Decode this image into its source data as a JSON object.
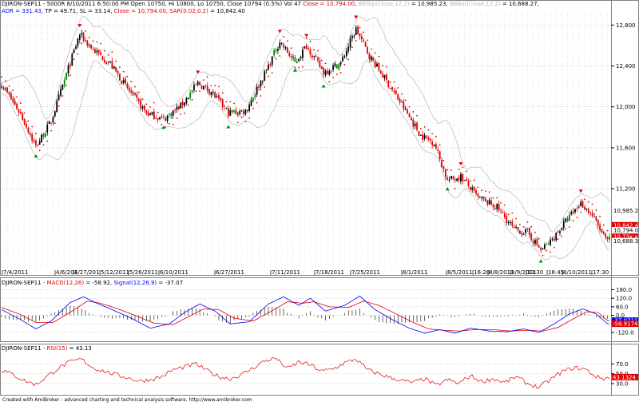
{
  "main": {
    "line1": {
      "symbol": "DJIRON-SEP11",
      "quote": " - 5000R 8/10/2011 6:50:00 PM Open 10750, Hi 10800, Lo 10750, Close 10794 (0.5%) Vol 47",
      "close": " Close = 10,794.00,",
      "bbtop": " BBTop(Close,12,2)",
      "bbtop_val": " = 10,985.23,",
      "bbbot": " BBBot(Close,12,2)",
      "bbbot_val": " = 10,688.27,"
    },
    "line2": {
      "adr": "ADR = 331.43,",
      "tp": " TP = 49.71,",
      "sl": " SL = 33.14,",
      "close": " Close = 10,794.00,",
      "sar": " SAR(0.02,0.2)",
      "sar_val": " = 10,842.40"
    }
  },
  "macd": {
    "label": "DJIRON-SEP11",
    "name": " - MACD(12,26)",
    "val": " = -58.92,",
    "signal": " Signal(12,26,9)",
    "signal_val": " = -37.07"
  },
  "rsi": {
    "label": "DJIRON-SEP11",
    "name": " - RSI(15)",
    "val": " = 43.13"
  },
  "footer": "Created with AmiBroker - advanced charting and technical analysis software. http://www.amibroker.com",
  "colors": {
    "up": "#000000",
    "down": "#e00000",
    "buy": "#008c00",
    "sar": "#e00000",
    "band": "#c0c0c0",
    "macd": "#0000ff",
    "signal": "#e00000",
    "rsi": "#e00000",
    "grid": "#a0a0a0"
  },
  "chart_data": [
    {
      "type": "candlestick",
      "title": "DJIRON-SEP11 - 5000R",
      "ylim": [
        10380,
        12920
      ],
      "y_ticks": [
        12800,
        12400,
        12000,
        11600,
        11200
      ],
      "y_tick_labels": [
        "12,800",
        "12,400",
        "12,000",
        "11,600",
        "11,200"
      ],
      "x_labels": [
        "7/4/2011",
        "4/6/201",
        "4/27/201",
        "5/12/2011",
        "5/26/2011",
        "6/10/2011",
        "6/27/2011",
        "7/11/2011",
        "7/18/2011",
        "7/25/2011",
        "8/1/2011",
        "8/5/2011",
        "16:20",
        "8/8/2011",
        "8/9/2011",
        "13:30",
        "16:45",
        "8/10/2011",
        "17:30"
      ],
      "trend_points": [
        {
          "x": 0,
          "y": 12220
        },
        {
          "x": 10,
          "y": 11930
        },
        {
          "x": 18,
          "y": 11610
        },
        {
          "x": 26,
          "y": 11860
        },
        {
          "x": 34,
          "y": 12320
        },
        {
          "x": 41,
          "y": 12710
        },
        {
          "x": 48,
          "y": 12560
        },
        {
          "x": 57,
          "y": 12420
        },
        {
          "x": 66,
          "y": 12180
        },
        {
          "x": 76,
          "y": 11940
        },
        {
          "x": 85,
          "y": 11880
        },
        {
          "x": 94,
          "y": 12010
        },
        {
          "x": 103,
          "y": 12230
        },
        {
          "x": 110,
          "y": 12150
        },
        {
          "x": 119,
          "y": 11940
        },
        {
          "x": 128,
          "y": 11960
        },
        {
          "x": 138,
          "y": 12320
        },
        {
          "x": 146,
          "y": 12640
        },
        {
          "x": 154,
          "y": 12430
        },
        {
          "x": 160,
          "y": 12600
        },
        {
          "x": 169,
          "y": 12340
        },
        {
          "x": 178,
          "y": 12430
        },
        {
          "x": 186,
          "y": 12760
        },
        {
          "x": 193,
          "y": 12500
        },
        {
          "x": 201,
          "y": 12280
        },
        {
          "x": 210,
          "y": 12020
        },
        {
          "x": 220,
          "y": 11720
        },
        {
          "x": 227,
          "y": 11650
        },
        {
          "x": 234,
          "y": 11280
        },
        {
          "x": 241,
          "y": 11320
        },
        {
          "x": 250,
          "y": 11110
        },
        {
          "x": 260,
          "y": 11020
        },
        {
          "x": 269,
          "y": 10800
        },
        {
          "x": 276,
          "y": 10770
        },
        {
          "x": 283,
          "y": 10600
        },
        {
          "x": 288,
          "y": 10680
        },
        {
          "x": 296,
          "y": 10880
        },
        {
          "x": 304,
          "y": 11060
        },
        {
          "x": 310,
          "y": 10940
        },
        {
          "x": 317,
          "y": 10700
        }
      ],
      "bars": 320,
      "series_labels": [
        {
          "name": "BBTop",
          "value": 10985.23,
          "label": "10,985.2"
        },
        {
          "name": "SAR",
          "value": 10842.4,
          "label": "10,842.4"
        },
        {
          "name": "Close",
          "value": 10794.0,
          "label": "10,794.0"
        },
        {
          "name": "BBBot",
          "value": 10688.27,
          "label": "10,688.3"
        }
      ],
      "right_labels": [
        {
          "value": 10985.23,
          "label": "10,985.2",
          "bg": "#ffffff",
          "fg": "#000000"
        },
        {
          "value": 10842.4,
          "label": "10,842.4",
          "bg": "#e00000",
          "fg": "#ffffff"
        },
        {
          "value": 10794.0,
          "label": "10,794.0",
          "bg": "#ffffff",
          "fg": "#000000"
        },
        {
          "value": 10730.0,
          "label": "10,73x.x",
          "bg": "#e00000",
          "fg": "#ffffff"
        },
        {
          "value": 10688.27,
          "label": "10,688.3",
          "bg": "#ffffff",
          "fg": "#000000"
        }
      ]
    },
    {
      "type": "line",
      "title": "MACD(12,26) Signal(12,26,9)",
      "ylim": [
        -165,
        205
      ],
      "y_ticks": [
        180,
        120,
        60,
        0,
        -60,
        -120
      ],
      "y_tick_labels": [
        "180.0",
        "120.0",
        "60.0",
        "0.0",
        "-60.0",
        "-120.0"
      ],
      "macd_points": [
        {
          "x": 0,
          "y": 40
        },
        {
          "x": 10,
          "y": -30
        },
        {
          "x": 18,
          "y": -95
        },
        {
          "x": 26,
          "y": -40
        },
        {
          "x": 36,
          "y": 90
        },
        {
          "x": 43,
          "y": 130
        },
        {
          "x": 50,
          "y": 85
        },
        {
          "x": 58,
          "y": 40
        },
        {
          "x": 68,
          "y": -20
        },
        {
          "x": 78,
          "y": -90
        },
        {
          "x": 88,
          "y": -60
        },
        {
          "x": 96,
          "y": 20
        },
        {
          "x": 104,
          "y": 80
        },
        {
          "x": 112,
          "y": 30
        },
        {
          "x": 120,
          "y": -60
        },
        {
          "x": 130,
          "y": -45
        },
        {
          "x": 140,
          "y": 80
        },
        {
          "x": 148,
          "y": 130
        },
        {
          "x": 156,
          "y": 70
        },
        {
          "x": 162,
          "y": 120
        },
        {
          "x": 170,
          "y": 30
        },
        {
          "x": 180,
          "y": 70
        },
        {
          "x": 188,
          "y": 135
        },
        {
          "x": 196,
          "y": 40
        },
        {
          "x": 205,
          "y": -30
        },
        {
          "x": 214,
          "y": -90
        },
        {
          "x": 222,
          "y": -125
        },
        {
          "x": 230,
          "y": -100
        },
        {
          "x": 238,
          "y": -125
        },
        {
          "x": 246,
          "y": -90
        },
        {
          "x": 256,
          "y": -110
        },
        {
          "x": 265,
          "y": -115
        },
        {
          "x": 274,
          "y": -95
        },
        {
          "x": 282,
          "y": -120
        },
        {
          "x": 290,
          "y": -60
        },
        {
          "x": 298,
          "y": 10
        },
        {
          "x": 305,
          "y": 45
        },
        {
          "x": 312,
          "y": 10
        },
        {
          "x": 318,
          "y": -59
        }
      ],
      "signal_points": [
        {
          "x": 0,
          "y": 55
        },
        {
          "x": 10,
          "y": 5
        },
        {
          "x": 18,
          "y": -50
        },
        {
          "x": 27,
          "y": -50
        },
        {
          "x": 37,
          "y": 30
        },
        {
          "x": 45,
          "y": 100
        },
        {
          "x": 52,
          "y": 85
        },
        {
          "x": 60,
          "y": 50
        },
        {
          "x": 70,
          "y": 0
        },
        {
          "x": 80,
          "y": -55
        },
        {
          "x": 90,
          "y": -65
        },
        {
          "x": 98,
          "y": -10
        },
        {
          "x": 106,
          "y": 45
        },
        {
          "x": 114,
          "y": 40
        },
        {
          "x": 122,
          "y": -20
        },
        {
          "x": 132,
          "y": -40
        },
        {
          "x": 141,
          "y": 25
        },
        {
          "x": 150,
          "y": 95
        },
        {
          "x": 158,
          "y": 85
        },
        {
          "x": 164,
          "y": 95
        },
        {
          "x": 172,
          "y": 60
        },
        {
          "x": 182,
          "y": 55
        },
        {
          "x": 190,
          "y": 100
        },
        {
          "x": 198,
          "y": 70
        },
        {
          "x": 207,
          "y": 10
        },
        {
          "x": 216,
          "y": -50
        },
        {
          "x": 224,
          "y": -95
        },
        {
          "x": 232,
          "y": -105
        },
        {
          "x": 240,
          "y": -110
        },
        {
          "x": 248,
          "y": -100
        },
        {
          "x": 258,
          "y": -100
        },
        {
          "x": 267,
          "y": -110
        },
        {
          "x": 276,
          "y": -105
        },
        {
          "x": 284,
          "y": -110
        },
        {
          "x": 292,
          "y": -85
        },
        {
          "x": 300,
          "y": -25
        },
        {
          "x": 307,
          "y": 25
        },
        {
          "x": 313,
          "y": 20
        },
        {
          "x": 318,
          "y": -37
        }
      ],
      "right_labels": [
        {
          "value": -37.07,
          "label": "-37.0711",
          "bg": "#0000ff",
          "fg": "#ffffff"
        },
        {
          "value": -58.92,
          "label": "-58.9174",
          "bg": "#e00000",
          "fg": "#ffffff"
        }
      ]
    },
    {
      "type": "line",
      "title": "RSI(15)",
      "ylim": [
        12,
        95
      ],
      "y_ticks": [
        70,
        50,
        30
      ],
      "y_tick_labels": [
        "70.0",
        "50.0",
        "30.0"
      ],
      "rsi_points": [
        {
          "x": 0,
          "y": 58
        },
        {
          "x": 6,
          "y": 48
        },
        {
          "x": 12,
          "y": 36
        },
        {
          "x": 18,
          "y": 28
        },
        {
          "x": 24,
          "y": 45
        },
        {
          "x": 30,
          "y": 62
        },
        {
          "x": 36,
          "y": 74
        },
        {
          "x": 42,
          "y": 80
        },
        {
          "x": 48,
          "y": 62
        },
        {
          "x": 54,
          "y": 55
        },
        {
          "x": 60,
          "y": 48
        },
        {
          "x": 66,
          "y": 42
        },
        {
          "x": 72,
          "y": 35
        },
        {
          "x": 78,
          "y": 38
        },
        {
          "x": 84,
          "y": 44
        },
        {
          "x": 90,
          "y": 58
        },
        {
          "x": 96,
          "y": 64
        },
        {
          "x": 102,
          "y": 70
        },
        {
          "x": 108,
          "y": 56
        },
        {
          "x": 114,
          "y": 44
        },
        {
          "x": 120,
          "y": 40
        },
        {
          "x": 126,
          "y": 48
        },
        {
          "x": 132,
          "y": 62
        },
        {
          "x": 138,
          "y": 76
        },
        {
          "x": 144,
          "y": 82
        },
        {
          "x": 150,
          "y": 60
        },
        {
          "x": 156,
          "y": 74
        },
        {
          "x": 162,
          "y": 68
        },
        {
          "x": 168,
          "y": 55
        },
        {
          "x": 174,
          "y": 60
        },
        {
          "x": 180,
          "y": 72
        },
        {
          "x": 186,
          "y": 80
        },
        {
          "x": 192,
          "y": 58
        },
        {
          "x": 198,
          "y": 50
        },
        {
          "x": 204,
          "y": 42
        },
        {
          "x": 210,
          "y": 36
        },
        {
          "x": 216,
          "y": 32
        },
        {
          "x": 222,
          "y": 40
        },
        {
          "x": 228,
          "y": 26
        },
        {
          "x": 234,
          "y": 38
        },
        {
          "x": 240,
          "y": 30
        },
        {
          "x": 246,
          "y": 46
        },
        {
          "x": 252,
          "y": 34
        },
        {
          "x": 258,
          "y": 40
        },
        {
          "x": 264,
          "y": 32
        },
        {
          "x": 270,
          "y": 44
        },
        {
          "x": 276,
          "y": 30
        },
        {
          "x": 282,
          "y": 22
        },
        {
          "x": 288,
          "y": 38
        },
        {
          "x": 294,
          "y": 54
        },
        {
          "x": 300,
          "y": 62
        },
        {
          "x": 306,
          "y": 60
        },
        {
          "x": 312,
          "y": 44
        },
        {
          "x": 316,
          "y": 40
        },
        {
          "x": 319,
          "y": 43
        }
      ],
      "right_labels": [
        {
          "value": 43.13,
          "label": "43.1324",
          "bg": "#e00000",
          "fg": "#ffffff"
        }
      ]
    }
  ]
}
